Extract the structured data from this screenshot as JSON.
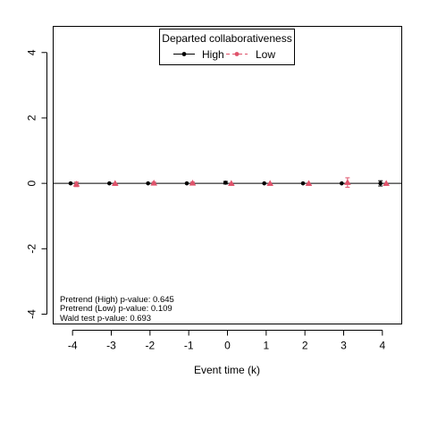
{
  "chart_data": {
    "type": "scatter",
    "title": "",
    "xlabel": "Event time (k)",
    "ylabel": "",
    "xlim": [
      -4.5,
      4.5
    ],
    "ylim": [
      -4.3,
      4.8
    ],
    "x_ticks": [
      -4,
      -3,
      -2,
      -1,
      0,
      1,
      2,
      3,
      4
    ],
    "x_tick_labels": [
      "-4",
      "-3",
      "-2",
      "-1",
      "0",
      "1",
      "2",
      "3",
      "4"
    ],
    "y_ticks": [
      -4,
      -2,
      0,
      2,
      4
    ],
    "y_tick_labels": [
      "-4",
      "-2",
      "0",
      "2",
      "4"
    ],
    "reference_line_y": 0,
    "legend": {
      "title": "Departed collaborativeness",
      "position": "top-center",
      "entries": [
        "High",
        "Low"
      ]
    },
    "series": [
      {
        "name": "High",
        "color": "#000000",
        "marker": "circle",
        "x": [
          -4,
          -3,
          -2,
          -1,
          0,
          1,
          2,
          3,
          4
        ],
        "offset": -0.05,
        "y": [
          0.0,
          0.0,
          0.0,
          0.0,
          0.02,
          0.0,
          0.0,
          0.0,
          0.0
        ],
        "ci_low": [
          0.0,
          0.0,
          0.0,
          0.0,
          -0.02,
          0.0,
          0.0,
          0.0,
          -0.08
        ],
        "ci_high": [
          0.0,
          0.0,
          0.0,
          0.0,
          0.06,
          0.0,
          0.0,
          0.0,
          0.08
        ]
      },
      {
        "name": "Low",
        "color": "#df536b",
        "marker": "triangle",
        "x": [
          -4,
          -3,
          -2,
          -1,
          0,
          1,
          2,
          3,
          4
        ],
        "offset": 0.1,
        "y": [
          -0.02,
          0.0,
          0.01,
          0.01,
          0.0,
          0.0,
          0.0,
          0.03,
          0.0
        ],
        "ci_low": [
          -0.1,
          -0.02,
          -0.02,
          -0.02,
          -0.02,
          -0.02,
          -0.02,
          -0.12,
          -0.02
        ],
        "ci_high": [
          0.04,
          0.02,
          0.04,
          0.04,
          0.02,
          0.02,
          0.02,
          0.17,
          0.02
        ]
      }
    ],
    "annotations": [
      "Pretrend (High) p-value: 0.645",
      "Pretrend (Low) p-value: 0.109",
      "Wald test p-value: 0.693"
    ]
  }
}
